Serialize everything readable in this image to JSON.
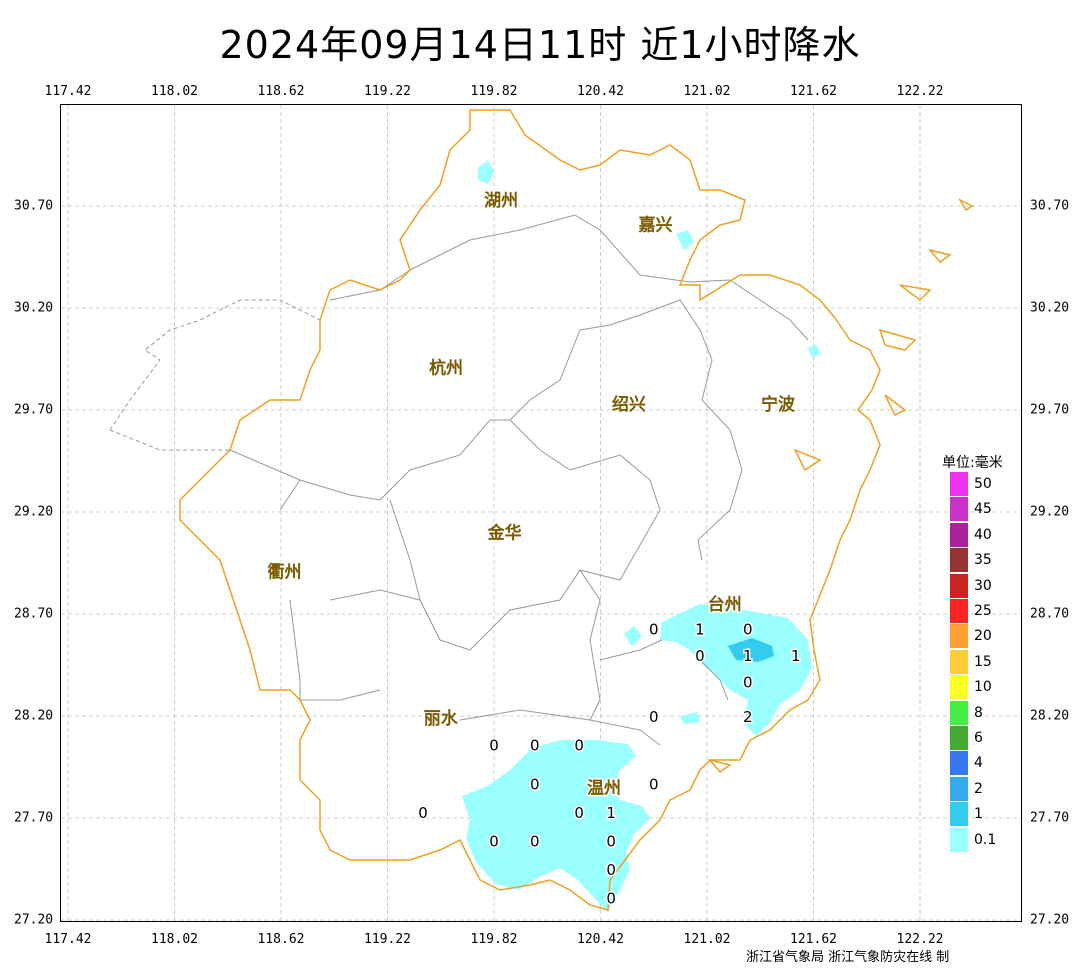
{
  "title": "2024年09月14日11时  近1小时降水",
  "x_ticks": [
    {
      "label": "117.42",
      "lon": 117.42
    },
    {
      "label": "118.02",
      "lon": 118.02
    },
    {
      "label": "118.62",
      "lon": 118.62
    },
    {
      "label": "119.22",
      "lon": 119.22
    },
    {
      "label": "119.82",
      "lon": 119.82
    },
    {
      "label": "120.42",
      "lon": 120.42
    },
    {
      "label": "121.02",
      "lon": 121.02
    },
    {
      "label": "121.62",
      "lon": 121.62
    },
    {
      "label": "122.22",
      "lon": 122.22
    }
  ],
  "y_ticks": [
    {
      "label": "30.70",
      "lat": 30.7
    },
    {
      "label": "30.20",
      "lat": 30.2
    },
    {
      "label": "29.70",
      "lat": 29.7
    },
    {
      "label": "29.20",
      "lat": 29.2
    },
    {
      "label": "28.70",
      "lat": 28.7
    },
    {
      "label": "28.20",
      "lat": 28.2
    },
    {
      "label": "27.70",
      "lat": 27.7
    },
    {
      "label": "27.20",
      "lat": 27.2
    }
  ],
  "cities": [
    {
      "name": "湖州",
      "lon": 119.86,
      "lat": 30.7
    },
    {
      "name": "嘉兴",
      "lon": 120.73,
      "lat": 30.58
    },
    {
      "name": "杭州",
      "lon": 119.55,
      "lat": 29.88
    },
    {
      "name": "绍兴",
      "lon": 120.58,
      "lat": 29.7
    },
    {
      "name": "宁波",
      "lon": 121.42,
      "lat": 29.7
    },
    {
      "name": "金华",
      "lon": 119.88,
      "lat": 29.07
    },
    {
      "name": "衢州",
      "lon": 118.64,
      "lat": 28.88
    },
    {
      "name": "台州",
      "lon": 121.12,
      "lat": 28.72
    },
    {
      "name": "丽水",
      "lon": 119.52,
      "lat": 28.16
    },
    {
      "name": "温州",
      "lon": 120.44,
      "lat": 27.82
    }
  ],
  "station_values": [
    {
      "v": "0",
      "lon": 120.72,
      "lat": 28.6
    },
    {
      "v": "1",
      "lon": 120.98,
      "lat": 28.6
    },
    {
      "v": "0",
      "lon": 121.25,
      "lat": 28.6
    },
    {
      "v": "0",
      "lon": 120.98,
      "lat": 28.47
    },
    {
      "v": "1",
      "lon": 121.25,
      "lat": 28.47
    },
    {
      "v": "1",
      "lon": 121.52,
      "lat": 28.47
    },
    {
      "v": "0",
      "lon": 121.25,
      "lat": 28.34
    },
    {
      "v": "2",
      "lon": 121.25,
      "lat": 28.17
    },
    {
      "v": "0",
      "lon": 120.72,
      "lat": 28.17
    },
    {
      "v": "0",
      "lon": 119.82,
      "lat": 28.03
    },
    {
      "v": "0",
      "lon": 120.05,
      "lat": 28.03
    },
    {
      "v": "0",
      "lon": 120.3,
      "lat": 28.03
    },
    {
      "v": "0",
      "lon": 120.05,
      "lat": 27.84
    },
    {
      "v": "0",
      "lon": 120.72,
      "lat": 27.84
    },
    {
      "v": "0",
      "lon": 119.42,
      "lat": 27.7
    },
    {
      "v": "0",
      "lon": 120.3,
      "lat": 27.7
    },
    {
      "v": "1",
      "lon": 120.48,
      "lat": 27.7
    },
    {
      "v": "0",
      "lon": 119.82,
      "lat": 27.56
    },
    {
      "v": "0",
      "lon": 120.05,
      "lat": 27.56
    },
    {
      "v": "0",
      "lon": 120.48,
      "lat": 27.56
    },
    {
      "v": "0",
      "lon": 120.48,
      "lat": 27.42
    },
    {
      "v": "0",
      "lon": 120.48,
      "lat": 27.28
    }
  ],
  "legend": {
    "title": "单位:毫米",
    "items": [
      {
        "label": "50",
        "color": "#ee33ee"
      },
      {
        "label": "45",
        "color": "#cc33cc"
      },
      {
        "label": "40",
        "color": "#aa2299"
      },
      {
        "label": "35",
        "color": "#993333"
      },
      {
        "label": "30",
        "color": "#cc2222"
      },
      {
        "label": "25",
        "color": "#ff2222"
      },
      {
        "label": "20",
        "color": "#ffa030"
      },
      {
        "label": "15",
        "color": "#ffcc33"
      },
      {
        "label": "10",
        "color": "#ffff22"
      },
      {
        "label": "8",
        "color": "#44ee44"
      },
      {
        "label": "6",
        "color": "#44aa33"
      },
      {
        "label": "4",
        "color": "#3377ee"
      },
      {
        "label": "2",
        "color": "#33aaee"
      },
      {
        "label": "1",
        "color": "#33ccee"
      },
      {
        "label": "0.1",
        "color": "#99ffff"
      }
    ]
  },
  "colors": {
    "coast": "#f0a020",
    "boundary": "#999999",
    "rain_light": "#99ffff",
    "rain_1": "#33ccee",
    "grid": "#cccccc"
  },
  "credit": "浙江省气象局   浙江气象防灾在线 制"
}
